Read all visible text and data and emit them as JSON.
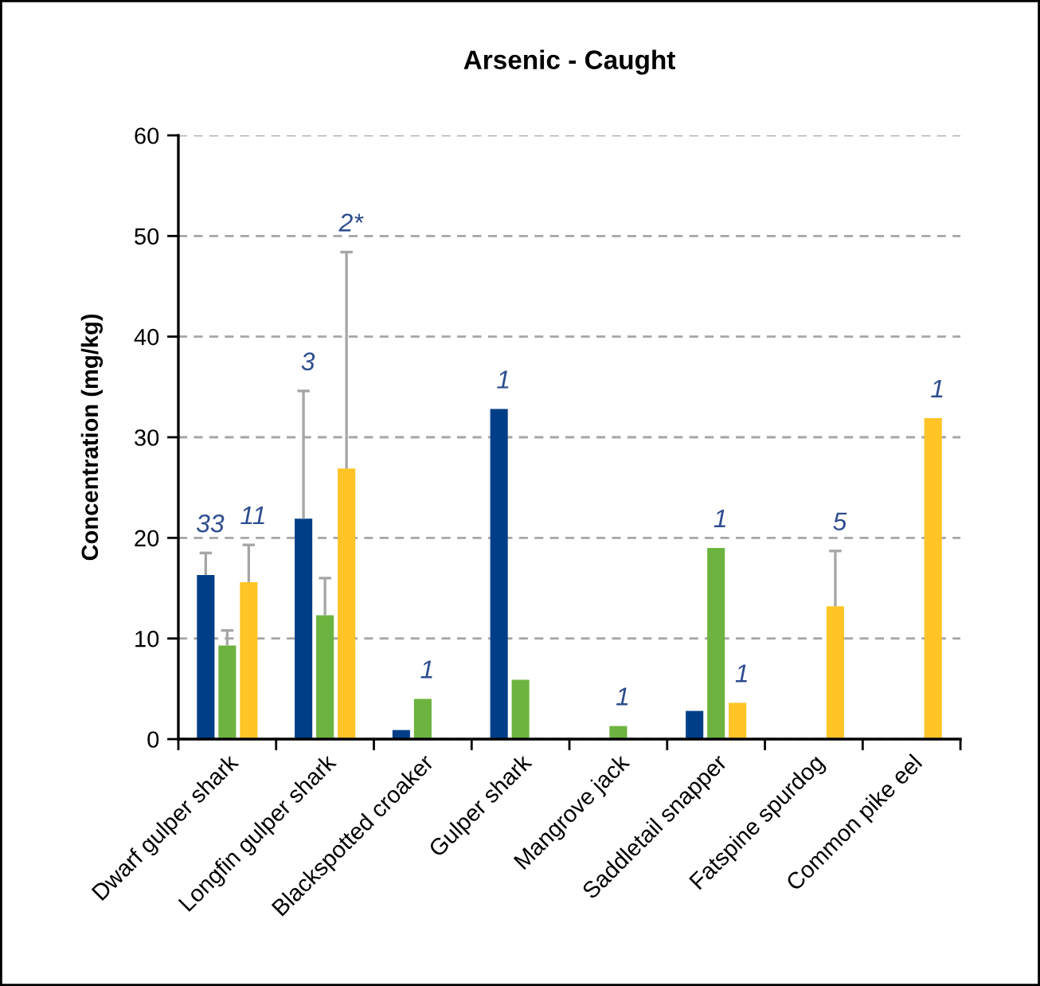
{
  "chart_data": {
    "type": "bar",
    "title": "Arsenic - Caught",
    "ylabel": "Concentration (mg/kg)",
    "categories": [
      "Dwarf gulper shark",
      "Longfin gulper shark",
      "Blackspotted croaker",
      "Gulper shark",
      "Mangrove jack",
      "Saddletail snapper",
      "Fatspine spurdog",
      "Common pike eel"
    ],
    "series": [
      {
        "color": "#003f87",
        "values": [
          16.3,
          21.9,
          0.9,
          32.8,
          null,
          2.8,
          null,
          null
        ],
        "errors": [
          [
            16.3,
            18.5
          ],
          [
            21.9,
            34.6
          ],
          null,
          null,
          null,
          null,
          null,
          null
        ]
      },
      {
        "color": "#6db33f",
        "values": [
          9.3,
          12.3,
          4.0,
          5.9,
          1.3,
          19.0,
          null,
          null
        ],
        "errors": [
          [
            9.3,
            10.8
          ],
          [
            12.3,
            16.0
          ],
          null,
          null,
          null,
          null,
          null,
          null
        ]
      },
      {
        "color": "#ffc425",
        "values": [
          15.6,
          26.9,
          null,
          null,
          null,
          3.6,
          13.2,
          31.9
        ],
        "errors": [
          [
            15.6,
            19.3
          ],
          [
            26.9,
            48.4
          ],
          null,
          null,
          null,
          null,
          [
            13.2,
            18.7
          ],
          null
        ]
      }
    ],
    "annotations": [
      "33",
      "11",
      "3",
      "2*",
      "1",
      "1",
      "1",
      "1",
      "1",
      "5",
      "1"
    ],
    "ylim": [
      0,
      60
    ],
    "yticks": [
      0,
      10,
      20,
      30,
      40,
      50,
      60
    ],
    "grid": "y"
  }
}
